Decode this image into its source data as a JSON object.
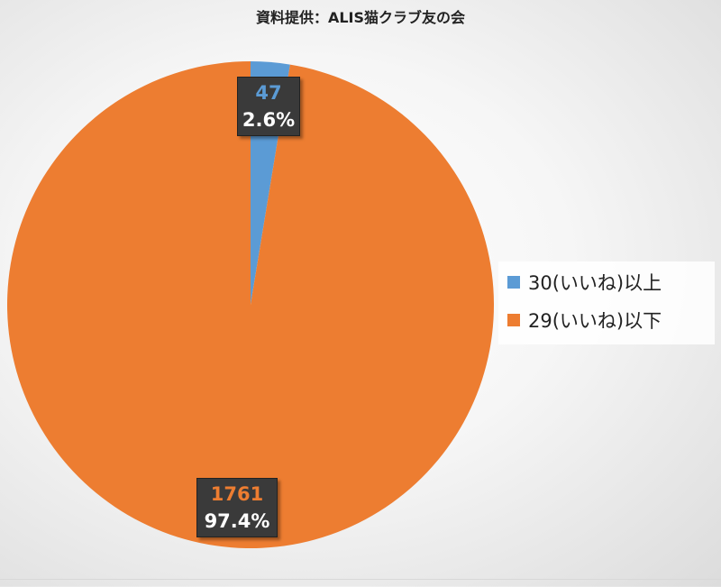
{
  "chart_data": {
    "type": "pie",
    "title": "資料提供：ALIS猫クラブ友の会",
    "slices": [
      {
        "name": "30(いいね)以上",
        "value": 47,
        "percent_label": "2.6%",
        "color": "#5b9bd5"
      },
      {
        "name": "29(いいね)以下",
        "value": 1761,
        "percent_label": "97.4%",
        "color": "#ed7d31"
      }
    ],
    "legend_position": "right"
  }
}
